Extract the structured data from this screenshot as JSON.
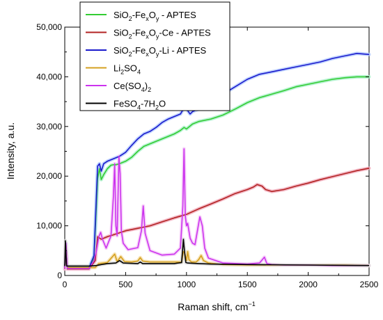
{
  "chart_data": {
    "type": "line",
    "xlabel": "Raman shift, cm",
    "xlabel_superscript": "−1",
    "ylabel": "Intensity, a.u.",
    "xlim": [
      0,
      2500
    ],
    "ylim": [
      0,
      50000
    ],
    "x_ticks": [
      0,
      500,
      1000,
      1500,
      2000,
      2500
    ],
    "x_tick_labels": [
      "0",
      "500",
      "1000",
      "1500",
      "2000",
      "2500"
    ],
    "y_ticks": [
      0,
      10000,
      20000,
      30000,
      40000,
      50000
    ],
    "y_tick_labels": [
      "0",
      "10,000",
      "20,000",
      "30,000",
      "40,000",
      "50,000"
    ],
    "grid": false,
    "legend_position": "top-left",
    "series": [
      {
        "name": "SiO2-FexOy - APTES",
        "legend_parts": [
          [
            "SiO",
            ""
          ],
          [
            "2",
            "sub"
          ],
          [
            "-Fe",
            ""
          ],
          [
            "x",
            "sub"
          ],
          [
            "O",
            ""
          ],
          [
            "y",
            "sub"
          ],
          [
            " - APTES",
            ""
          ]
        ],
        "color": "#33cc33",
        "halo": "#a8f0c8",
        "x": [
          0,
          10,
          20,
          200,
          240,
          270,
          285,
          300,
          320,
          350,
          380,
          400,
          420,
          450,
          500,
          550,
          600,
          650,
          700,
          800,
          900,
          950,
          980,
          1000,
          1050,
          1100,
          1200,
          1300,
          1400,
          1500,
          1600,
          1700,
          1800,
          1900,
          2000,
          2100,
          2200,
          2300,
          2400,
          2500
        ],
        "y": [
          1600,
          6500,
          1600,
          1600,
          3500,
          19500,
          21500,
          19300,
          20300,
          21500,
          22200,
          22300,
          22300,
          22500,
          23000,
          23800,
          25000,
          26000,
          26500,
          27500,
          28500,
          29200,
          29800,
          29500,
          30500,
          31000,
          31500,
          32300,
          33500,
          34800,
          35800,
          36500,
          37200,
          38000,
          38500,
          39000,
          39500,
          39800,
          40000,
          40000
        ]
      },
      {
        "name": "SiO2-FexOy-Ce - APTES",
        "legend_parts": [
          [
            "SiO",
            ""
          ],
          [
            "2",
            "sub"
          ],
          [
            "-Fe",
            ""
          ],
          [
            "x",
            "sub"
          ],
          [
            "O",
            ""
          ],
          [
            "y",
            "sub"
          ],
          [
            "-Ce - APTES",
            ""
          ]
        ],
        "color": "#b22222",
        "halo": "#f0a8b8",
        "x": [
          0,
          10,
          20,
          200,
          250,
          270,
          300,
          350,
          400,
          500,
          600,
          700,
          800,
          900,
          1000,
          1100,
          1200,
          1300,
          1400,
          1500,
          1550,
          1580,
          1620,
          1650,
          1700,
          1800,
          1900,
          2000,
          2100,
          2200,
          2300,
          2400,
          2500
        ],
        "y": [
          1300,
          5500,
          1300,
          1300,
          3000,
          7800,
          7300,
          7800,
          8200,
          9000,
          9500,
          10000,
          10800,
          11600,
          12300,
          13400,
          14400,
          15400,
          16500,
          17300,
          17800,
          18300,
          18000,
          17300,
          16900,
          17300,
          18000,
          18600,
          19300,
          19900,
          20500,
          21100,
          21600
        ]
      },
      {
        "name": "SiO2-FexOy-Li - APTES",
        "legend_parts": [
          [
            "SiO",
            ""
          ],
          [
            "2",
            "sub"
          ],
          [
            "-Fe",
            ""
          ],
          [
            "x",
            "sub"
          ],
          [
            "O",
            ""
          ],
          [
            "y",
            "sub"
          ],
          [
            "-Li - APTES",
            ""
          ]
        ],
        "color": "#1a1acc",
        "halo": "#b0c8ff",
        "x": [
          0,
          10,
          20,
          200,
          240,
          270,
          285,
          300,
          320,
          350,
          400,
          450,
          500,
          550,
          600,
          650,
          700,
          750,
          800,
          850,
          900,
          950,
          975,
          985,
          1000,
          1030,
          1050,
          1100,
          1200,
          1300,
          1400,
          1500,
          1600,
          1700,
          1800,
          1900,
          2000,
          2100,
          2200,
          2300,
          2400,
          2500
        ],
        "y": [
          1600,
          6500,
          1600,
          1600,
          4000,
          22000,
          22500,
          21000,
          22500,
          23000,
          23500,
          24000,
          24800,
          26200,
          27500,
          28500,
          29000,
          29800,
          30800,
          31500,
          32000,
          32500,
          33500,
          34500,
          33500,
          32500,
          33000,
          33500,
          35000,
          36500,
          38000,
          39500,
          40500,
          41000,
          41500,
          42000,
          42500,
          43000,
          43700,
          44200,
          44700,
          44500
        ]
      },
      {
        "name": "Li2SO4",
        "legend_parts": [
          [
            "Li",
            ""
          ],
          [
            "2",
            "sub"
          ],
          [
            "SO",
            ""
          ],
          [
            "4",
            "sub"
          ]
        ],
        "color": "#d4a020",
        "halo": "#f5dca0",
        "x": [
          0,
          10,
          20,
          250,
          280,
          350,
          410,
          430,
          460,
          490,
          550,
          600,
          620,
          640,
          700,
          900,
          960,
          975,
          985,
          1000,
          1010,
          1020,
          1040,
          1080,
          1100,
          1120,
          1140,
          1180,
          1300,
          1500,
          1700,
          2000,
          2300,
          2500
        ],
        "y": [
          1600,
          6200,
          1600,
          1600,
          2400,
          2600,
          4300,
          2800,
          3800,
          2800,
          2700,
          2900,
          3600,
          2900,
          2700,
          2700,
          2700,
          4800,
          4600,
          3000,
          4800,
          3200,
          2700,
          2700,
          3200,
          4000,
          3000,
          2500,
          2200,
          2100,
          2100,
          2100,
          2100,
          2000
        ]
      },
      {
        "name": "Ce(SO4)2",
        "legend_parts": [
          [
            "Ce(SO",
            ""
          ],
          [
            "4",
            "sub"
          ],
          [
            ")",
            ""
          ],
          [
            "2",
            "sub"
          ]
        ],
        "color": "#cc33ee",
        "halo": "#f5c8f8",
        "x": [
          0,
          10,
          20,
          200,
          240,
          260,
          280,
          295,
          310,
          340,
          380,
          400,
          410,
          420,
          430,
          445,
          455,
          465,
          480,
          520,
          600,
          630,
          645,
          660,
          700,
          800,
          900,
          950,
          970,
          980,
          990,
          1000,
          1010,
          1030,
          1050,
          1070,
          1090,
          1110,
          1130,
          1150,
          1180,
          1300,
          1500,
          1600,
          1640,
          1660,
          1700,
          1800,
          2000,
          2200,
          2500
        ],
        "y": [
          1400,
          6500,
          1400,
          1400,
          3000,
          5000,
          7800,
          8700,
          7300,
          5500,
          8000,
          16000,
          22500,
          10000,
          8000,
          24000,
          20500,
          9000,
          6500,
          5200,
          5600,
          9000,
          14000,
          8500,
          5000,
          4100,
          4300,
          5500,
          14000,
          25500,
          12000,
          10000,
          10500,
          7500,
          6500,
          6200,
          9000,
          11800,
          10000,
          5500,
          3500,
          2500,
          2300,
          2500,
          3700,
          2400,
          2200,
          2100,
          2100,
          2000,
          2000
        ]
      },
      {
        "name": "FeSO4-7H2O",
        "legend_parts": [
          [
            "FeSO",
            ""
          ],
          [
            "4",
            "sub"
          ],
          [
            "-7H",
            ""
          ],
          [
            "2",
            "sub"
          ],
          [
            "O",
            ""
          ]
        ],
        "color": "#000000",
        "halo": "#d8d8d8",
        "x": [
          0,
          5,
          15,
          100,
          200,
          260,
          300,
          350,
          420,
          450,
          480,
          600,
          620,
          640,
          900,
          960,
          975,
          985,
          995,
          1010,
          1100,
          1200,
          1500,
          2000,
          2500
        ],
        "y": [
          1900,
          7000,
          1900,
          1900,
          1900,
          2000,
          2200,
          2400,
          2500,
          3000,
          2500,
          2400,
          2700,
          2400,
          2400,
          2600,
          7300,
          4500,
          2600,
          2500,
          2400,
          2300,
          2200,
          2100,
          2000
        ]
      }
    ]
  }
}
